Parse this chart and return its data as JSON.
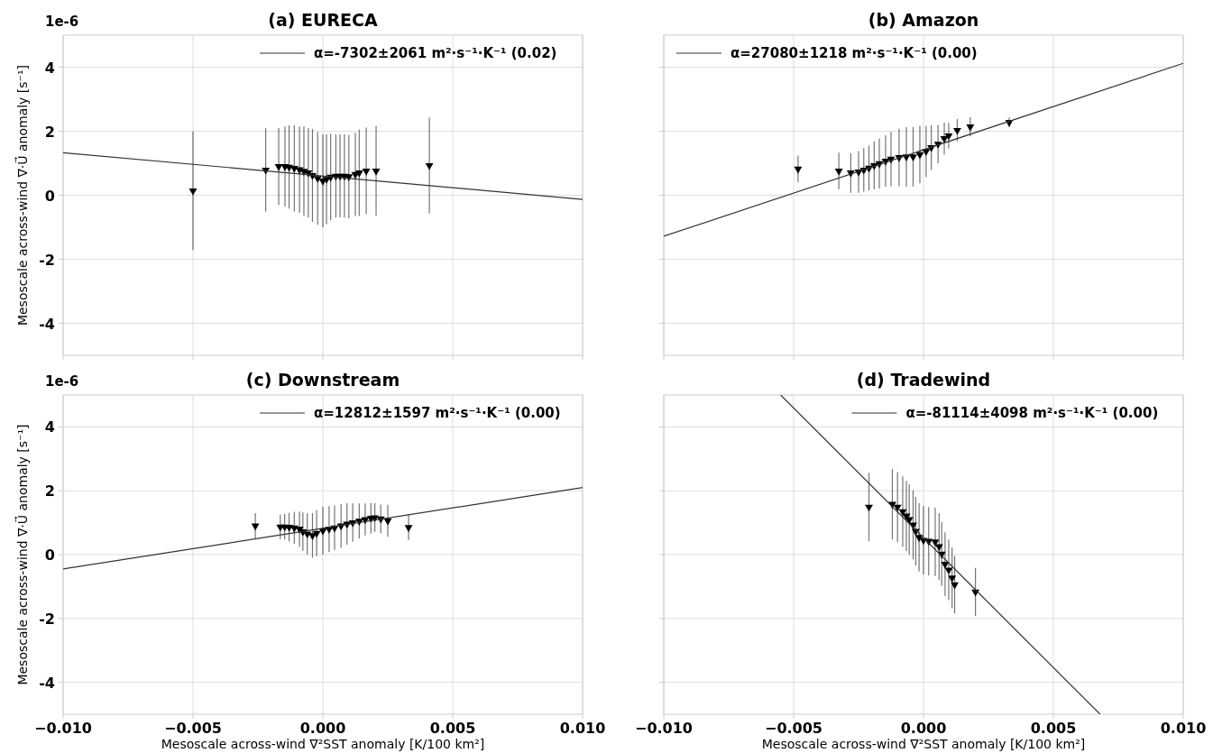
{
  "chart_data": [
    {
      "type": "scatter",
      "title": "(a) EURECA",
      "ylabel": "Mesoscale across-wind ∇·U⃗ anomaly [s⁻¹]",
      "annotations": [
        "1e-6"
      ],
      "xlim": [
        -0.01,
        0.01
      ],
      "ylim": [
        -5,
        5
      ],
      "xticks": [
        -0.01,
        -0.005,
        0,
        0.005,
        0.01
      ],
      "yticks": [
        -4,
        -2,
        0,
        2,
        4
      ],
      "grid": true,
      "legend": "top right",
      "tick_labels": "y",
      "series": [
        {
          "type": "scatter",
          "marker": "triangle",
          "color": "#000000",
          "x": [
            -0.005,
            -0.0022,
            -0.0017,
            -0.00146,
            -0.0013,
            -0.0011,
            -0.0009,
            -0.00073,
            -0.00056,
            -0.0004,
            -0.0002,
            0.0,
            0.00014,
            0.0003,
            0.0005,
            0.00066,
            0.00083,
            0.001,
            0.00125,
            0.0014,
            0.00167,
            0.00205,
            0.0041
          ],
          "values": [
            0.14,
            0.79,
            0.9,
            0.9,
            0.88,
            0.84,
            0.8,
            0.75,
            0.7,
            0.62,
            0.53,
            0.45,
            0.5,
            0.57,
            0.6,
            0.6,
            0.6,
            0.58,
            0.65,
            0.7,
            0.76,
            0.76,
            0.93
          ],
          "errors": [
            1.85,
            1.3,
            1.2,
            1.25,
            1.3,
            1.35,
            1.35,
            1.4,
            1.4,
            1.45,
            1.45,
            1.45,
            1.4,
            1.35,
            1.3,
            1.3,
            1.3,
            1.3,
            1.3,
            1.35,
            1.35,
            1.4,
            1.5
          ]
        },
        {
          "type": "line",
          "name": "α=-7302±2061 m²·s⁻¹·K⁻¹ (0.02)",
          "color": "#333333",
          "x": [
            -0.01,
            0.01
          ],
          "values": [
            1.33,
            -0.13
          ]
        }
      ]
    },
    {
      "type": "scatter",
      "title": "(b) Amazon",
      "xlim": [
        -0.01,
        0.01
      ],
      "ylim": [
        -5,
        5
      ],
      "xticks": [
        -0.01,
        -0.005,
        0,
        0.005,
        0.01
      ],
      "yticks": [
        -4,
        -2,
        0,
        2,
        4
      ],
      "grid": true,
      "legend": "top left",
      "tick_labels": false,
      "series": [
        {
          "type": "scatter",
          "marker": "triangle",
          "color": "#000000",
          "x": [
            -0.00483,
            -0.00326,
            -0.0028,
            -0.0025,
            -0.0023,
            -0.0021,
            -0.0019,
            -0.0017,
            -0.00146,
            -0.00125,
            -0.00094,
            -0.00066,
            -0.0004,
            -0.00014,
            0.0001,
            0.0003,
            0.00056,
            0.0008,
            0.00097,
            0.0013,
            0.0018,
            0.0033
          ],
          "values": [
            0.82,
            0.76,
            0.7,
            0.73,
            0.79,
            0.85,
            0.93,
            0.99,
            1.07,
            1.13,
            1.18,
            1.2,
            1.2,
            1.27,
            1.37,
            1.49,
            1.6,
            1.77,
            1.86,
            2.03,
            2.14,
            2.28
          ],
          "errors": [
            0.42,
            0.57,
            0.62,
            0.65,
            0.68,
            0.7,
            0.75,
            0.78,
            0.8,
            0.85,
            0.9,
            0.93,
            0.93,
            0.9,
            0.8,
            0.7,
            0.6,
            0.5,
            0.4,
            0.35,
            0.3,
            0.15
          ]
        },
        {
          "type": "line",
          "name": "α=27080±1218 m²·s⁻¹·K⁻¹ (0.00)",
          "color": "#333333",
          "x": [
            -0.01,
            0.01
          ],
          "values": [
            -1.28,
            4.12
          ]
        }
      ]
    },
    {
      "type": "scatter",
      "title": "(c) Downstream",
      "xlabel": "Mesoscale across-wind ∇²SST anomaly [K/100 km²]",
      "ylabel": "Mesoscale across-wind ∇·U⃗ anomaly [s⁻¹]",
      "annotations": [
        "1e-6"
      ],
      "xlim": [
        -0.01,
        0.01
      ],
      "ylim": [
        -5,
        5
      ],
      "xticks": [
        {
          "value": -0.01,
          "label": "−0.010"
        },
        {
          "value": -0.005,
          "label": "−0.005"
        },
        {
          "value": 0,
          "label": "0.000"
        },
        {
          "value": 0.005,
          "label": "0.005"
        },
        {
          "value": 0.01,
          "label": "0.010"
        }
      ],
      "yticks": [
        -4,
        -2,
        0,
        2,
        4
      ],
      "grid": true,
      "legend": "top right",
      "series": [
        {
          "type": "scatter",
          "marker": "triangle",
          "color": "#000000",
          "x": [
            -0.0026,
            -0.00164,
            -0.00147,
            -0.0013,
            -0.0011,
            -0.0009,
            -0.00077,
            -0.0006,
            -0.0004,
            -0.00024,
            0.0,
            0.00024,
            0.00045,
            0.0007,
            0.00093,
            0.00115,
            0.0014,
            0.00163,
            0.00185,
            0.002,
            0.00223,
            0.0025,
            0.0033
          ],
          "values": [
            0.9,
            0.87,
            0.87,
            0.86,
            0.84,
            0.8,
            0.72,
            0.65,
            0.6,
            0.67,
            0.75,
            0.8,
            0.84,
            0.9,
            0.96,
            1.0,
            1.05,
            1.1,
            1.14,
            1.16,
            1.12,
            1.06,
            0.85
          ],
          "errors": [
            0.4,
            0.38,
            0.4,
            0.45,
            0.5,
            0.55,
            0.6,
            0.65,
            0.7,
            0.72,
            0.75,
            0.72,
            0.7,
            0.68,
            0.65,
            0.6,
            0.55,
            0.5,
            0.48,
            0.45,
            0.45,
            0.5,
            0.4
          ]
        },
        {
          "type": "line",
          "name": "α=12812±1597 m²·s⁻¹·K⁻¹ (0.00)",
          "color": "#333333",
          "x": [
            -0.01,
            0.01
          ],
          "values": [
            -0.45,
            2.1
          ]
        }
      ]
    },
    {
      "type": "scatter",
      "title": "(d) Tradewind",
      "xlabel": "Mesoscale across-wind ∇²SST anomaly [K/100 km²]",
      "xlim": [
        -0.01,
        0.01
      ],
      "ylim": [
        -5,
        5
      ],
      "xticks": [
        {
          "value": -0.01,
          "label": "−0.010"
        },
        {
          "value": -0.005,
          "label": "−0.005"
        },
        {
          "value": 0,
          "label": "0.000"
        },
        {
          "value": 0.005,
          "label": "0.005"
        },
        {
          "value": 0.01,
          "label": "0.010"
        }
      ],
      "yticks": [
        -4,
        -2,
        0,
        2,
        4
      ],
      "grid": true,
      "legend": "top right",
      "tick_labels": "x",
      "series": [
        {
          "type": "scatter",
          "marker": "triangle",
          "color": "#000000",
          "x": [
            -0.0021,
            -0.0012,
            -0.001,
            -0.0008,
            -0.00066,
            -0.00055,
            -0.0004,
            -0.0003,
            -0.00017,
            0.0,
            0.0002,
            0.00045,
            0.0006,
            0.0007,
            0.00083,
            0.00097,
            0.0011,
            0.0012,
            0.002
          ],
          "values": [
            1.49,
            1.58,
            1.49,
            1.35,
            1.21,
            1.1,
            0.93,
            0.73,
            0.54,
            0.45,
            0.42,
            0.4,
            0.25,
            0.02,
            -0.3,
            -0.48,
            -0.73,
            -0.94,
            -1.17
          ],
          "errors": [
            1.07,
            1.1,
            1.1,
            1.1,
            1.1,
            1.1,
            1.08,
            1.07,
            1.07,
            1.07,
            1.07,
            1.07,
            1.05,
            1.0,
            1.0,
            0.95,
            0.95,
            0.9,
            0.75
          ]
        },
        {
          "type": "line",
          "name": "α=-81114±4098 m²·s⁻¹·K⁻¹ (0.00)",
          "color": "#333333",
          "x": [
            -0.0055,
            0.0068
          ],
          "values": [
            5,
            -5
          ]
        }
      ]
    }
  ]
}
